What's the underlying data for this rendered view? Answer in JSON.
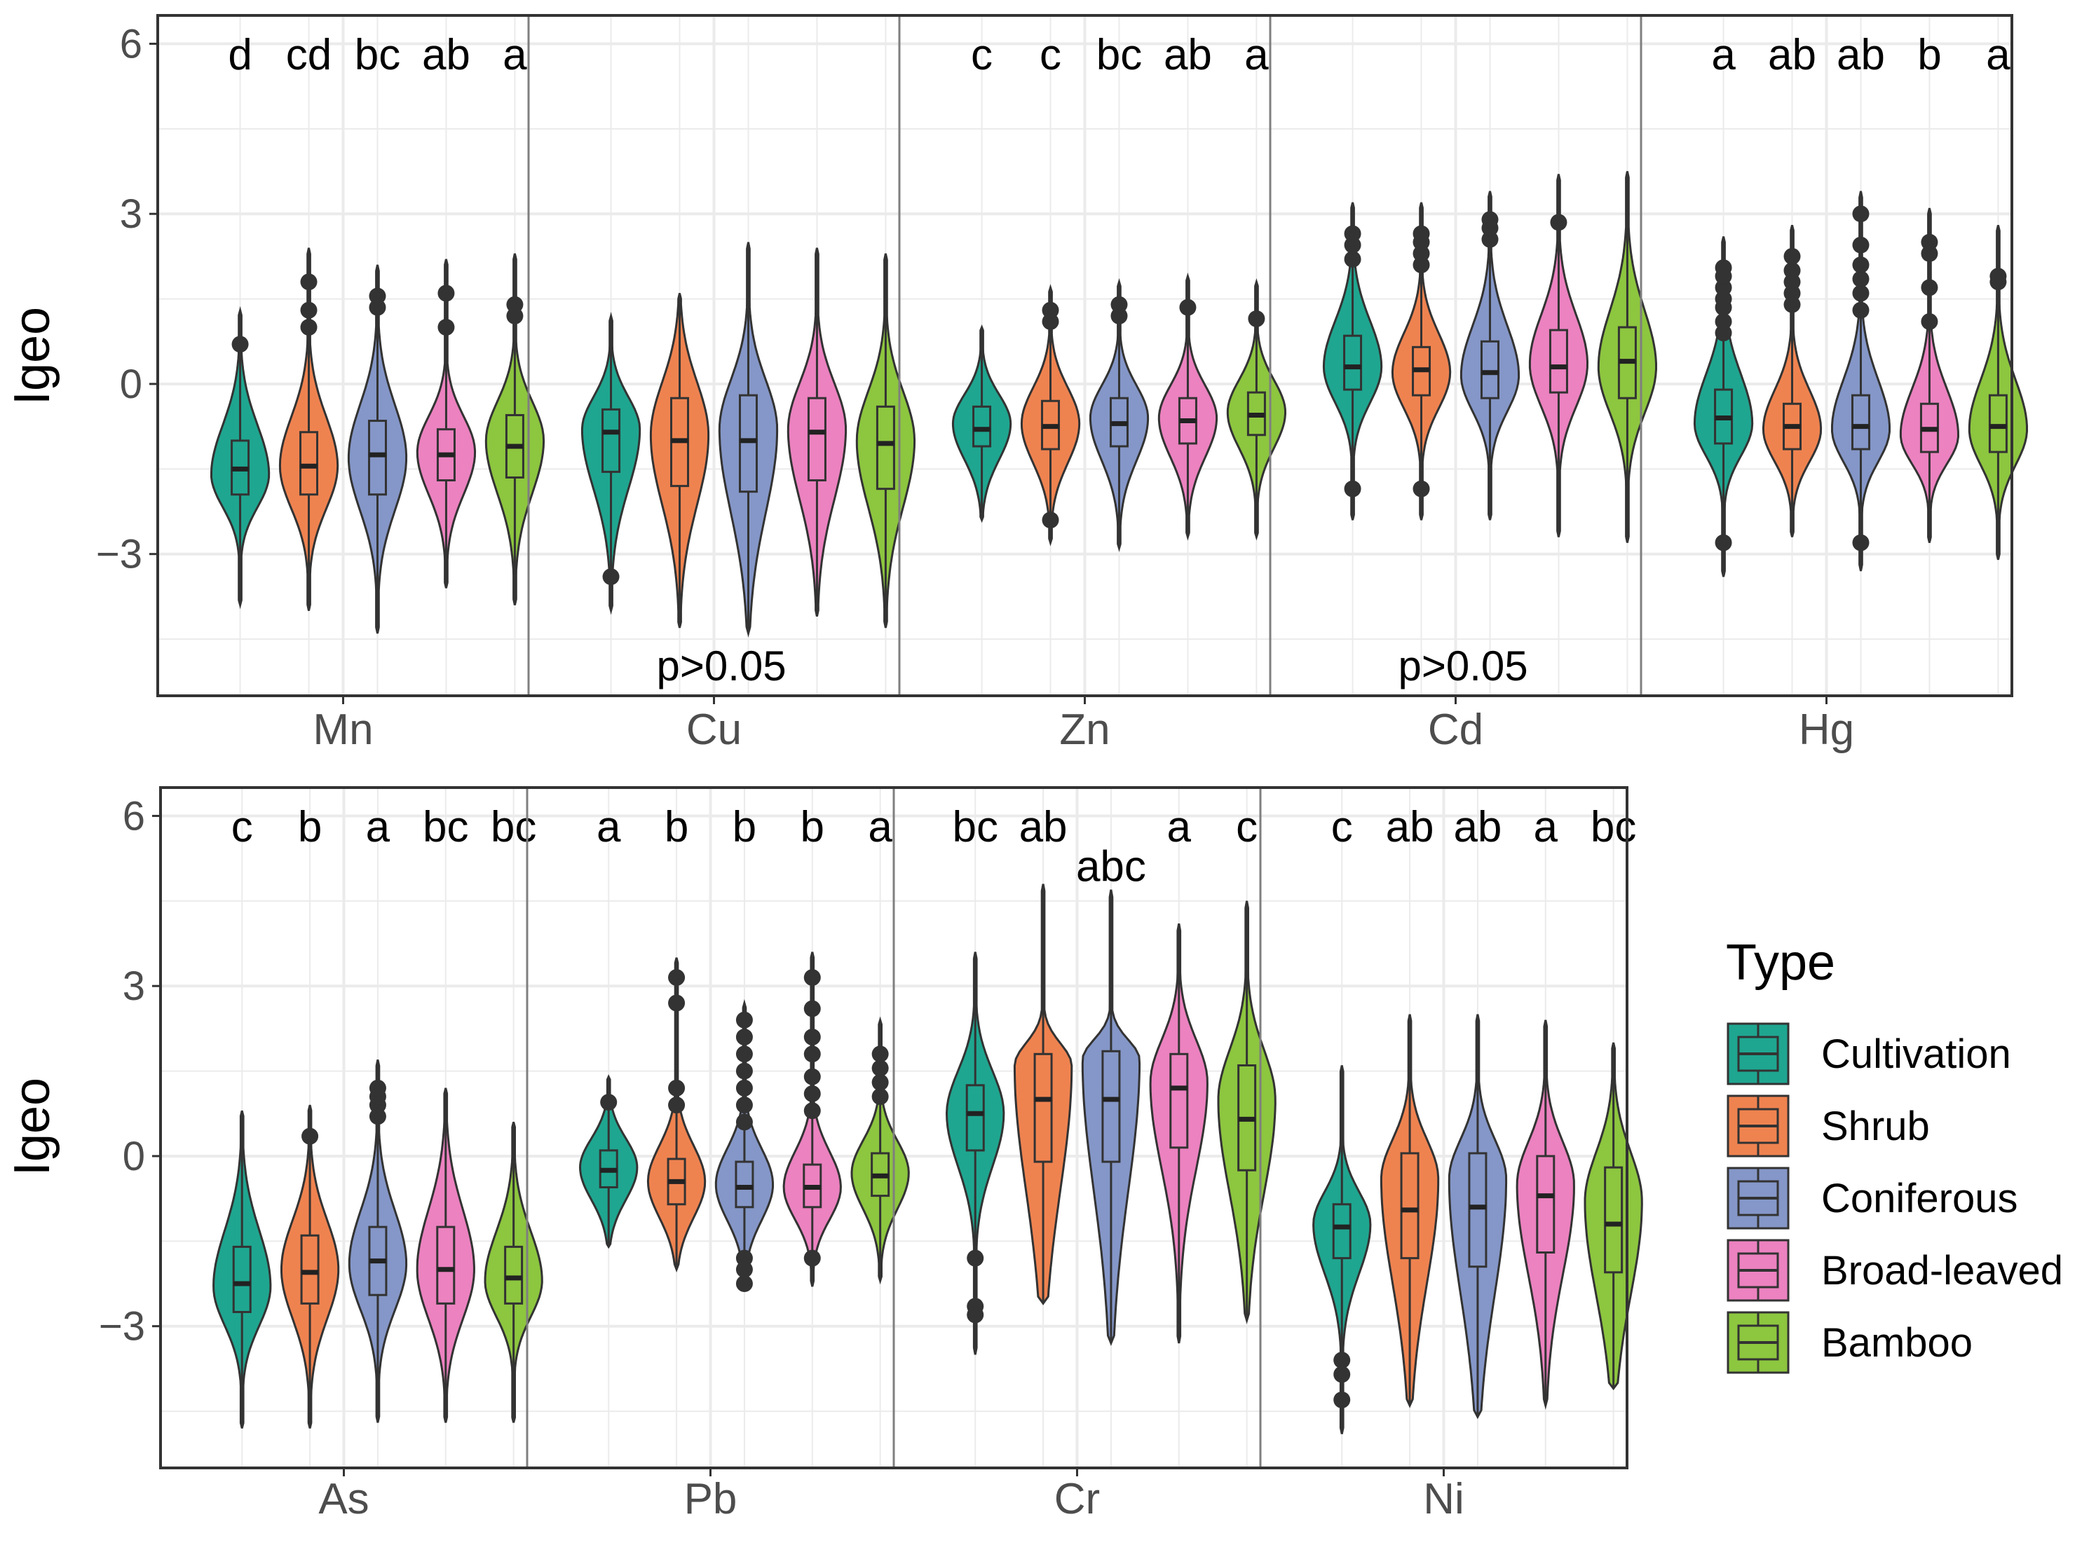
{
  "chart_data": [
    {
      "type": "violin",
      "xlabel": "",
      "ylabel": "Igeo",
      "ylim": [
        -5.5,
        6.5
      ],
      "yticks": [
        6,
        3,
        0,
        -3
      ],
      "ytick_labels": [
        "6",
        "3",
        "0",
        "−3"
      ],
      "grid": true,
      "legend_title": "Type",
      "legend_position": "right",
      "series_names": [
        "Cultivation",
        "Shrub",
        "Coniferous",
        "Broad-leaved",
        "Bamboo"
      ],
      "colors": [
        "#1fa690",
        "#ef8350",
        "#8597c8",
        "#ec82c0",
        "#8dc63f"
      ],
      "panels": [
        {
          "label": "Mn",
          "letters": [
            "d",
            "cd",
            "bc",
            "ab",
            "a"
          ],
          "note": "",
          "violins": [
            {
              "min": -3.9,
              "q1": -1.95,
              "median": -1.5,
              "q3": -1.0,
              "max": 1.3,
              "mode": -1.6,
              "outliers": [
                0.7
              ]
            },
            {
              "min": -4.0,
              "q1": -1.95,
              "median": -1.45,
              "q3": -0.85,
              "max": 2.4,
              "mode": -1.45,
              "outliers": [
                1.0,
                1.3,
                1.8
              ]
            },
            {
              "min": -4.4,
              "q1": -1.95,
              "median": -1.25,
              "q3": -0.65,
              "max": 2.1,
              "mode": -1.3,
              "outliers": [
                1.35,
                1.55
              ]
            },
            {
              "min": -3.6,
              "q1": -1.7,
              "median": -1.25,
              "q3": -0.8,
              "max": 2.2,
              "mode": -1.2,
              "outliers": [
                1.0,
                1.6
              ]
            },
            {
              "min": -3.9,
              "q1": -1.65,
              "median": -1.1,
              "q3": -0.55,
              "max": 2.3,
              "mode": -1.0,
              "outliers": [
                1.2,
                1.4
              ]
            }
          ]
        },
        {
          "label": "Cu",
          "letters": [],
          "note": "p>0.05",
          "violins": [
            {
              "min": -4.0,
              "q1": -1.55,
              "median": -0.85,
              "q3": -0.45,
              "max": 1.2,
              "mode": -0.8,
              "outliers": [
                -3.4
              ]
            },
            {
              "min": -4.3,
              "q1": -1.8,
              "median": -1.0,
              "q3": -0.25,
              "max": 1.6,
              "mode": -0.9,
              "outliers": []
            },
            {
              "min": -4.4,
              "q1": -1.9,
              "median": -1.0,
              "q3": -0.2,
              "max": 2.5,
              "mode": -0.8,
              "outliers": []
            },
            {
              "min": -4.1,
              "q1": -1.7,
              "median": -0.85,
              "q3": -0.25,
              "max": 2.4,
              "mode": -0.8,
              "outliers": []
            },
            {
              "min": -4.3,
              "q1": -1.85,
              "median": -1.05,
              "q3": -0.4,
              "max": 2.3,
              "mode": -1.0,
              "outliers": []
            }
          ]
        },
        {
          "label": "Zn",
          "letters": [
            "c",
            "c",
            "bc",
            "ab",
            "a"
          ],
          "note": "",
          "violins": [
            {
              "min": -2.4,
              "q1": -1.1,
              "median": -0.8,
              "q3": -0.4,
              "max": 1.0,
              "mode": -0.7,
              "outliers": []
            },
            {
              "min": -2.8,
              "q1": -1.15,
              "median": -0.75,
              "q3": -0.3,
              "max": 1.7,
              "mode": -0.7,
              "outliers": [
                -2.4,
                1.1,
                1.3
              ]
            },
            {
              "min": -2.9,
              "q1": -1.1,
              "median": -0.7,
              "q3": -0.25,
              "max": 1.8,
              "mode": -0.6,
              "outliers": [
                1.2,
                1.4
              ]
            },
            {
              "min": -2.7,
              "q1": -1.05,
              "median": -0.65,
              "q3": -0.25,
              "max": 1.9,
              "mode": -0.6,
              "outliers": [
                1.35
              ]
            },
            {
              "min": -2.7,
              "q1": -0.9,
              "median": -0.55,
              "q3": -0.15,
              "max": 1.8,
              "mode": -0.5,
              "outliers": [
                1.15
              ]
            }
          ]
        },
        {
          "label": "Cd",
          "letters": [],
          "note": "p>0.05",
          "violins": [
            {
              "min": -2.4,
              "q1": -0.1,
              "median": 0.3,
              "q3": 0.85,
              "max": 3.2,
              "mode": 0.3,
              "outliers": [
                -1.85,
                2.2,
                2.45,
                2.65
              ]
            },
            {
              "min": -2.4,
              "q1": -0.2,
              "median": 0.25,
              "q3": 0.65,
              "max": 3.2,
              "mode": 0.2,
              "outliers": [
                -1.85,
                2.1,
                2.3,
                2.5,
                2.65
              ]
            },
            {
              "min": -2.4,
              "q1": -0.25,
              "median": 0.2,
              "q3": 0.75,
              "max": 3.4,
              "mode": 0.15,
              "outliers": [
                2.55,
                2.75,
                2.9
              ]
            },
            {
              "min": -2.7,
              "q1": -0.15,
              "median": 0.3,
              "q3": 0.95,
              "max": 3.7,
              "mode": 0.35,
              "outliers": [
                2.85
              ]
            },
            {
              "min": -2.8,
              "q1": -0.25,
              "median": 0.4,
              "q3": 1.0,
              "max": 3.75,
              "mode": 0.3,
              "outliers": []
            }
          ]
        },
        {
          "label": "Hg",
          "letters": [
            "a",
            "ab",
            "ab",
            "b",
            "a"
          ],
          "note": "",
          "violins": [
            {
              "min": -3.4,
              "q1": -1.05,
              "median": -0.6,
              "q3": -0.1,
              "max": 2.6,
              "mode": -0.7,
              "outliers": [
                -2.8,
                0.9,
                1.1,
                1.35,
                1.5,
                1.7,
                1.9,
                2.05
              ]
            },
            {
              "min": -2.7,
              "q1": -1.15,
              "median": -0.75,
              "q3": -0.35,
              "max": 2.8,
              "mode": -0.8,
              "outliers": [
                1.4,
                1.6,
                1.8,
                2.0,
                2.25
              ]
            },
            {
              "min": -3.3,
              "q1": -1.15,
              "median": -0.75,
              "q3": -0.2,
              "max": 3.4,
              "mode": -0.8,
              "outliers": [
                -2.8,
                1.3,
                1.6,
                1.85,
                2.1,
                2.45,
                3.0
              ]
            },
            {
              "min": -2.8,
              "q1": -1.2,
              "median": -0.8,
              "q3": -0.35,
              "max": 3.1,
              "mode": -0.9,
              "outliers": [
                1.1,
                1.7,
                2.3,
                2.5
              ]
            },
            {
              "min": -3.1,
              "q1": -1.2,
              "median": -0.75,
              "q3": -0.2,
              "max": 2.8,
              "mode": -0.8,
              "outliers": [
                1.8,
                1.9
              ]
            }
          ]
        }
      ]
    },
    {
      "type": "violin",
      "xlabel": "",
      "ylabel": "Igeo",
      "ylim": [
        -5.5,
        6.5
      ],
      "yticks": [
        6,
        3,
        0,
        -3
      ],
      "ytick_labels": [
        "6",
        "3",
        "0",
        "−3"
      ],
      "grid": true,
      "panels": [
        {
          "label": "As",
          "letters": [
            "c",
            "b",
            "a",
            "bc",
            "bc"
          ],
          "note": "",
          "violins": [
            {
              "min": -4.8,
              "q1": -2.75,
              "median": -2.25,
              "q3": -1.6,
              "max": 0.8,
              "mode": -2.3,
              "outliers": []
            },
            {
              "min": -4.8,
              "q1": -2.6,
              "median": -2.05,
              "q3": -1.4,
              "max": 0.9,
              "mode": -2.0,
              "outliers": [
                0.35
              ]
            },
            {
              "min": -4.7,
              "q1": -2.45,
              "median": -1.85,
              "q3": -1.25,
              "max": 1.7,
              "mode": -1.9,
              "outliers": [
                0.7,
                0.9,
                1.05,
                1.2
              ]
            },
            {
              "min": -4.7,
              "q1": -2.6,
              "median": -2.0,
              "q3": -1.25,
              "max": 1.2,
              "mode": -2.0,
              "outliers": []
            },
            {
              "min": -4.7,
              "q1": -2.6,
              "median": -2.15,
              "q3": -1.6,
              "max": 0.6,
              "mode": -2.2,
              "outliers": []
            }
          ]
        },
        {
          "label": "Pb",
          "letters": [
            "a",
            "b",
            "b",
            "b",
            "a"
          ],
          "note": "",
          "violins": [
            {
              "min": -1.6,
              "q1": -0.55,
              "median": -0.25,
              "q3": 0.1,
              "max": 1.4,
              "mode": -0.2,
              "outliers": [
                0.95
              ]
            },
            {
              "min": -2.0,
              "q1": -0.85,
              "median": -0.45,
              "q3": -0.05,
              "max": 3.5,
              "mode": -0.45,
              "outliers": [
                0.9,
                1.2,
                2.7,
                3.15
              ]
            },
            {
              "min": -2.3,
              "q1": -0.9,
              "median": -0.55,
              "q3": -0.1,
              "max": 2.7,
              "mode": -0.5,
              "outliers": [
                -2.25,
                -2.0,
                -1.8,
                0.6,
                0.9,
                1.2,
                1.5,
                1.8,
                2.1,
                2.4
              ]
            },
            {
              "min": -2.3,
              "q1": -0.9,
              "median": -0.55,
              "q3": -0.15,
              "max": 3.6,
              "mode": -0.55,
              "outliers": [
                -1.8,
                0.8,
                1.1,
                1.4,
                1.8,
                2.1,
                2.6,
                3.15
              ]
            },
            {
              "min": -2.2,
              "q1": -0.7,
              "median": -0.35,
              "q3": 0.05,
              "max": 2.4,
              "mode": -0.3,
              "outliers": [
                1.05,
                1.3,
                1.55,
                1.8
              ]
            }
          ]
        },
        {
          "label": "Cr",
          "letters": [
            "bc",
            "ab",
            "abc",
            "a",
            "c"
          ],
          "note": "",
          "violins": [
            {
              "min": -3.5,
              "q1": 0.1,
              "median": 0.75,
              "q3": 1.25,
              "max": 3.6,
              "mode": 0.75,
              "outliers": [
                -1.8,
                -2.65,
                -2.8
              ]
            },
            {
              "min": -2.6,
              "q1": -0.1,
              "median": 1.0,
              "q3": 1.8,
              "max": 4.8,
              "mode": 1.6,
              "outliers": []
            },
            {
              "min": -3.3,
              "q1": -0.1,
              "median": 1.0,
              "q3": 1.85,
              "max": 4.7,
              "mode": 1.7,
              "outliers": []
            },
            {
              "min": -3.3,
              "q1": 0.15,
              "median": 1.2,
              "q3": 1.8,
              "max": 4.1,
              "mode": 1.3,
              "outliers": []
            },
            {
              "min": -2.9,
              "q1": -0.25,
              "median": 0.65,
              "q3": 1.6,
              "max": 4.5,
              "mode": 1.0,
              "outliers": []
            }
          ]
        },
        {
          "label": "Ni",
          "letters": [
            "c",
            "ab",
            "ab",
            "a",
            "bc"
          ],
          "note": "",
          "violins": [
            {
              "min": -4.9,
              "q1": -1.8,
              "median": -1.25,
              "q3": -0.85,
              "max": 1.6,
              "mode": -1.2,
              "outliers": [
                -3.6,
                -3.85,
                -4.3
              ]
            },
            {
              "min": -4.4,
              "q1": -1.8,
              "median": -0.95,
              "q3": 0.05,
              "max": 2.5,
              "mode": -0.4,
              "outliers": []
            },
            {
              "min": -4.6,
              "q1": -1.95,
              "median": -0.9,
              "q3": 0.05,
              "max": 2.5,
              "mode": -0.4,
              "outliers": []
            },
            {
              "min": -4.4,
              "q1": -1.7,
              "median": -0.7,
              "q3": 0.0,
              "max": 2.4,
              "mode": -0.5,
              "outliers": []
            },
            {
              "min": -4.1,
              "q1": -2.05,
              "median": -1.2,
              "q3": -0.2,
              "max": 2.0,
              "mode": -0.8,
              "outliers": []
            }
          ]
        }
      ]
    }
  ]
}
